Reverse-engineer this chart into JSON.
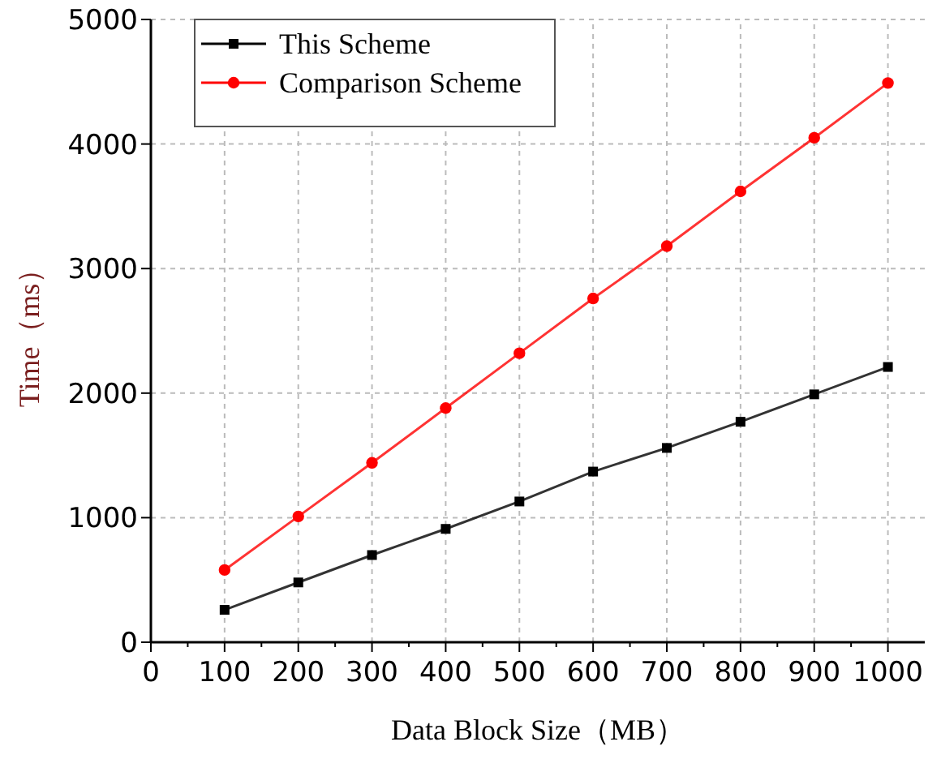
{
  "chart_data": {
    "type": "line",
    "xlabel": "Data Block Size（MB）",
    "ylabel": "Time（ms）",
    "x": [
      100,
      200,
      300,
      400,
      500,
      600,
      700,
      800,
      900,
      1000
    ],
    "xlim": [
      0,
      1050
    ],
    "ylim": [
      0,
      5000
    ],
    "xticks": [
      0,
      {
        "value": 50,
        "label": null
      },
      100,
      {
        "value": 150,
        "label": null
      },
      200,
      {
        "value": 250,
        "label": null
      },
      300,
      {
        "value": 350,
        "label": null
      },
      400,
      {
        "value": 450,
        "label": null
      },
      500,
      {
        "value": 550,
        "label": null
      },
      600,
      {
        "value": 650,
        "label": null
      },
      700,
      {
        "value": 750,
        "label": null
      },
      800,
      {
        "value": 850,
        "label": null
      },
      900,
      {
        "value": 950,
        "label": null
      },
      1000
    ],
    "yticks": [
      0,
      1000,
      2000,
      3000,
      4000,
      5000
    ],
    "grid": true,
    "legend": "top left",
    "line_style": "solid",
    "series": [
      {
        "name": "This Scheme",
        "color": "#000000",
        "marker": "square",
        "values": [
          260,
          480,
          700,
          910,
          1130,
          1370,
          1560,
          1770,
          1990,
          2210
        ]
      },
      {
        "name": "Comparison Scheme",
        "color": "#ff0000",
        "marker": "circle",
        "values": [
          580,
          1010,
          1440,
          1880,
          2320,
          2760,
          3180,
          3620,
          4050,
          4490
        ]
      }
    ]
  }
}
